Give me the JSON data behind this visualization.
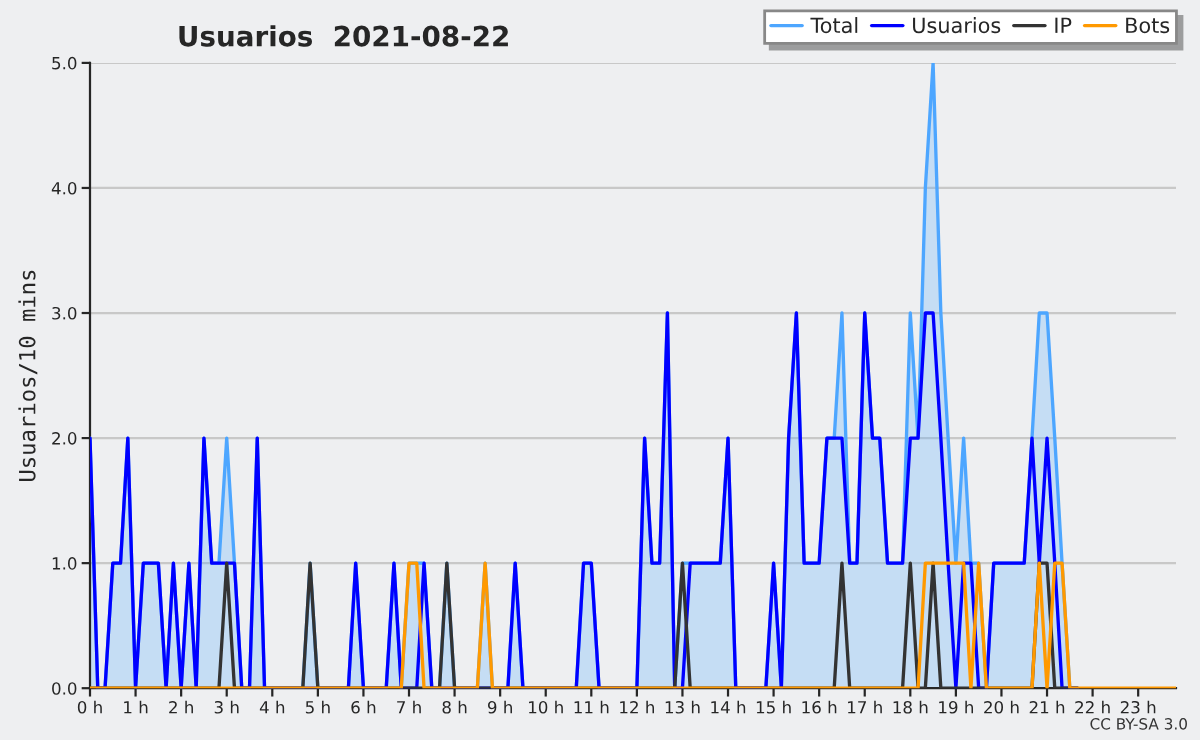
{
  "chart_data": {
    "type": "line",
    "title": "Usuarios  2021-08-22",
    "ylabel": "Usuarios/10 mins",
    "x": [
      0,
      0.17,
      0.33,
      0.5,
      0.67,
      0.83,
      1,
      1.17,
      1.33,
      1.5,
      1.67,
      1.83,
      2,
      2.17,
      2.33,
      2.5,
      2.67,
      2.83,
      3,
      3.17,
      3.33,
      3.5,
      3.67,
      3.83,
      4,
      4.17,
      4.33,
      4.5,
      4.67,
      4.83,
      5,
      5.17,
      5.33,
      5.5,
      5.67,
      5.83,
      6,
      6.17,
      6.33,
      6.5,
      6.67,
      6.83,
      7,
      7.17,
      7.33,
      7.5,
      7.67,
      7.83,
      8,
      8.17,
      8.33,
      8.5,
      8.67,
      8.83,
      9,
      9.17,
      9.33,
      9.5,
      9.67,
      9.83,
      10,
      10.17,
      10.33,
      10.5,
      10.67,
      10.83,
      11,
      11.17,
      11.33,
      11.5,
      11.67,
      11.83,
      12,
      12.17,
      12.33,
      12.5,
      12.67,
      12.83,
      13,
      13.17,
      13.33,
      13.5,
      13.67,
      13.83,
      14,
      14.17,
      14.33,
      14.5,
      14.67,
      14.83,
      15,
      15.17,
      15.33,
      15.5,
      15.67,
      15.83,
      16,
      16.17,
      16.33,
      16.5,
      16.67,
      16.83,
      17,
      17.17,
      17.33,
      17.5,
      17.67,
      17.83,
      18,
      18.17,
      18.33,
      18.5,
      18.67,
      18.83,
      19,
      19.17,
      19.33,
      19.5,
      19.67,
      19.83,
      20,
      20.17,
      20.33,
      20.5,
      20.67,
      20.83,
      21,
      21.17,
      21.33,
      21.5,
      21.67,
      21.83,
      22,
      22.17,
      22.33,
      22.5,
      22.67,
      22.83,
      23,
      23.17,
      23.33,
      23.5,
      23.67,
      23.83
    ],
    "series": [
      {
        "name": "Total",
        "type": "area",
        "color": "#4da6ff",
        "values": [
          2,
          0,
          0,
          1,
          1,
          2,
          0,
          1,
          1,
          1,
          0,
          1,
          0,
          1,
          0,
          2,
          1,
          1,
          2,
          1,
          0,
          0,
          2,
          0,
          0,
          0,
          0,
          0,
          0,
          1,
          0,
          0,
          0,
          0,
          0,
          1,
          0,
          0,
          0,
          0,
          1,
          0,
          1,
          1,
          1,
          0,
          0,
          1,
          0,
          0,
          0,
          0,
          1,
          0,
          0,
          0,
          1,
          0,
          0,
          0,
          0,
          0,
          0,
          0,
          0,
          1,
          1,
          0,
          0,
          0,
          0,
          0,
          0,
          2,
          1,
          1,
          3,
          0,
          1,
          1,
          1,
          1,
          1,
          1,
          2,
          0,
          0,
          0,
          0,
          0,
          1,
          0,
          2,
          3,
          1,
          1,
          1,
          2,
          2,
          3,
          1,
          1,
          3,
          2,
          2,
          1,
          1,
          1,
          3,
          2,
          4,
          5,
          3,
          2,
          1,
          2,
          1,
          1,
          0,
          1,
          1,
          1,
          1,
          1,
          2,
          3,
          3,
          2,
          1,
          0,
          0,
          null,
          null,
          null,
          null,
          null,
          null,
          null,
          null,
          null,
          null,
          null,
          null,
          null
        ]
      },
      {
        "name": "Usuarios",
        "color": "#0000ff",
        "values": [
          2,
          0,
          0,
          1,
          1,
          2,
          0,
          1,
          1,
          1,
          0,
          1,
          0,
          1,
          0,
          2,
          1,
          1,
          1,
          1,
          0,
          0,
          2,
          0,
          0,
          0,
          0,
          0,
          0,
          0,
          0,
          0,
          0,
          0,
          0,
          1,
          0,
          0,
          0,
          0,
          1,
          0,
          0,
          0,
          1,
          0,
          0,
          0,
          0,
          0,
          0,
          0,
          0,
          0,
          0,
          0,
          1,
          0,
          0,
          0,
          0,
          0,
          0,
          0,
          0,
          1,
          1,
          0,
          0,
          0,
          0,
          0,
          0,
          2,
          1,
          1,
          3,
          0,
          0,
          1,
          1,
          1,
          1,
          1,
          2,
          0,
          0,
          0,
          0,
          0,
          1,
          0,
          2,
          3,
          1,
          1,
          1,
          2,
          2,
          2,
          1,
          1,
          3,
          2,
          2,
          1,
          1,
          1,
          2,
          2,
          3,
          3,
          2,
          1,
          0,
          1,
          1,
          0,
          0,
          1,
          1,
          1,
          1,
          1,
          2,
          1,
          2,
          1,
          0,
          0,
          0,
          null,
          null,
          null,
          null,
          null,
          null,
          null,
          null,
          null,
          null,
          null,
          null,
          null
        ]
      },
      {
        "name": "IP",
        "color": "#333333",
        "values": [
          0,
          0,
          0,
          0,
          0,
          0,
          0,
          0,
          0,
          0,
          0,
          0,
          0,
          0,
          0,
          0,
          0,
          0,
          1,
          0,
          0,
          0,
          0,
          0,
          0,
          0,
          0,
          0,
          0,
          1,
          0,
          0,
          0,
          0,
          0,
          0,
          0,
          0,
          0,
          0,
          0,
          0,
          0,
          0,
          0,
          0,
          0,
          1,
          0,
          0,
          0,
          0,
          0,
          0,
          0,
          0,
          0,
          0,
          0,
          0,
          0,
          0,
          0,
          0,
          0,
          0,
          0,
          0,
          0,
          0,
          0,
          0,
          0,
          0,
          0,
          0,
          0,
          0,
          1,
          0,
          0,
          0,
          0,
          0,
          0,
          0,
          0,
          0,
          0,
          0,
          0,
          0,
          0,
          0,
          0,
          0,
          0,
          0,
          0,
          1,
          0,
          0,
          0,
          0,
          0,
          0,
          0,
          0,
          1,
          0,
          0,
          1,
          0,
          0,
          0,
          0,
          0,
          0,
          0,
          0,
          0,
          0,
          0,
          0,
          0,
          1,
          1,
          0,
          0,
          0,
          0,
          null,
          null,
          null,
          null,
          null,
          null,
          null,
          null,
          null,
          null,
          null,
          null,
          null
        ]
      },
      {
        "name": "Bots",
        "color": "#ff9900",
        "values": [
          0,
          0,
          0,
          0,
          0,
          0,
          0,
          0,
          0,
          0,
          0,
          0,
          0,
          0,
          0,
          0,
          0,
          0,
          0,
          0,
          0,
          0,
          0,
          0,
          0,
          0,
          0,
          0,
          0,
          0,
          0,
          0,
          0,
          0,
          0,
          0,
          0,
          0,
          0,
          0,
          0,
          0,
          1,
          1,
          0,
          0,
          0,
          0,
          0,
          0,
          0,
          0,
          1,
          0,
          0,
          0,
          0,
          0,
          0,
          0,
          0,
          0,
          0,
          0,
          0,
          0,
          0,
          0,
          0,
          0,
          0,
          0,
          0,
          0,
          0,
          0,
          0,
          0,
          0,
          0,
          0,
          0,
          0,
          0,
          0,
          0,
          0,
          0,
          0,
          0,
          0,
          0,
          0,
          0,
          0,
          0,
          0,
          0,
          0,
          0,
          0,
          0,
          0,
          0,
          0,
          0,
          0,
          0,
          0,
          0,
          1,
          1,
          1,
          1,
          1,
          1,
          0,
          1,
          0,
          0,
          0,
          0,
          0,
          0,
          0,
          1,
          0,
          1,
          1,
          0,
          0,
          0,
          0,
          0,
          0,
          0,
          0,
          0,
          0,
          0,
          0,
          0,
          0,
          0
        ]
      }
    ],
    "xlim": [
      0,
      23.83
    ],
    "xticks": [
      {
        "value": 0,
        "label": "0 h"
      },
      {
        "value": 1,
        "label": "1 h"
      },
      {
        "value": 2,
        "label": "2 h"
      },
      {
        "value": 3,
        "label": "3 h"
      },
      {
        "value": 4,
        "label": "4 h"
      },
      {
        "value": 5,
        "label": "5 h"
      },
      {
        "value": 6,
        "label": "6 h"
      },
      {
        "value": 7,
        "label": "7 h"
      },
      {
        "value": 8,
        "label": "8 h"
      },
      {
        "value": 9,
        "label": "9 h"
      },
      {
        "value": 10,
        "label": "10 h"
      },
      {
        "value": 11,
        "label": "11 h"
      },
      {
        "value": 12,
        "label": "12 h"
      },
      {
        "value": 13,
        "label": "13 h"
      },
      {
        "value": 14,
        "label": "14 h"
      },
      {
        "value": 15,
        "label": "15 h"
      },
      {
        "value": 16,
        "label": "16 h"
      },
      {
        "value": 17,
        "label": "17 h"
      },
      {
        "value": 18,
        "label": "18 h"
      },
      {
        "value": 19,
        "label": "19 h"
      },
      {
        "value": 20,
        "label": "20 h"
      },
      {
        "value": 21,
        "label": "21 h"
      },
      {
        "value": 22,
        "label": "22 h"
      },
      {
        "value": 23,
        "label": "23 h"
      }
    ],
    "ylim": [
      0,
      5
    ],
    "yticks": [
      {
        "value": 0,
        "label": "0.0"
      },
      {
        "value": 1,
        "label": "1.0"
      },
      {
        "value": 2,
        "label": "2.0"
      },
      {
        "value": 3,
        "label": "3.0"
      },
      {
        "value": 4,
        "label": "4.0"
      },
      {
        "value": 5,
        "label": "5.0"
      }
    ],
    "grid": "y",
    "legend": "top right",
    "annotations": [
      "CC BY-SA 3.0"
    ]
  }
}
